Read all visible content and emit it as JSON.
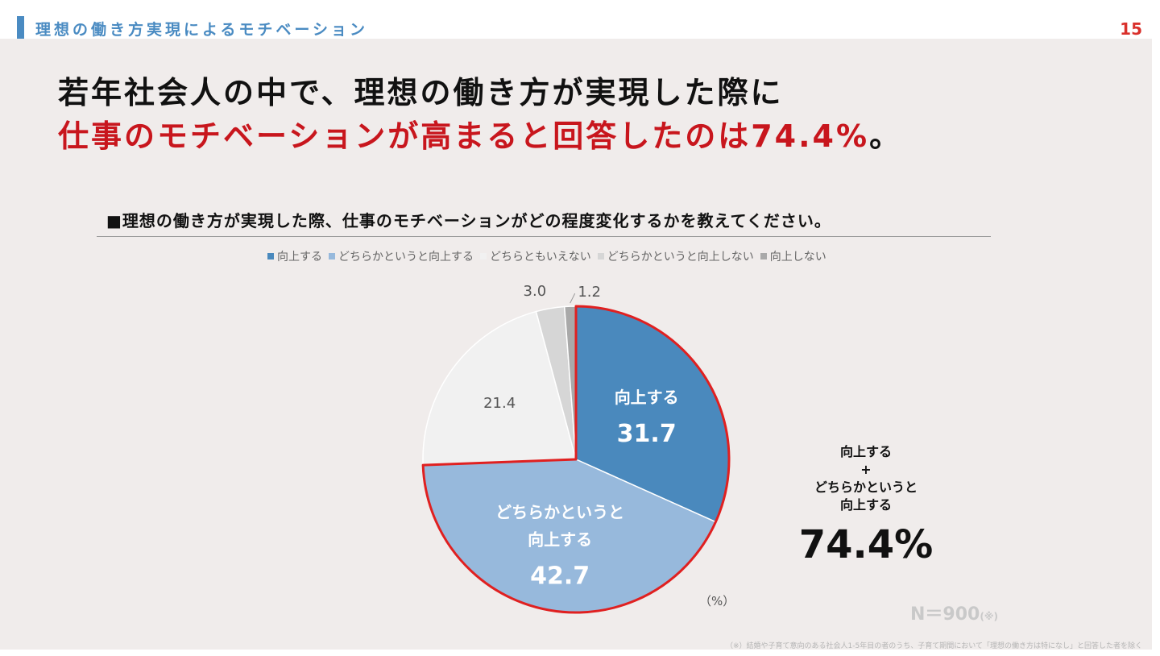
{
  "header": {
    "title": "理想の働き方実現によるモチベーション",
    "page_number": "15"
  },
  "headline": {
    "line1": "若年社会人の中で、理想の働き方が実現した際に",
    "line2_red": "仕事のモチベーションが高まると回答したのは74.4%",
    "line2_end": "。"
  },
  "question": "■理想の働き方が実現した際、仕事のモチベーションがどの程度変化するかを教えてください。",
  "summary": {
    "line1": "向上する",
    "plus": "+",
    "line2": "どちらかというと",
    "line3": "向上する",
    "value": "74.4%"
  },
  "unit": "（%）",
  "sample": {
    "label": "N＝900",
    "mark": "(※)"
  },
  "footnote": "（※）結婚や子育て意向のある社会人1-5年目の者のうち、子育て期間において「理想の働き方は特になし」と回答した者を除く",
  "colors": {
    "highlight_outline": "#e02020"
  },
  "chart_data": {
    "type": "pie",
    "unit": "%",
    "legend_position": "top",
    "start": "12 o'clock",
    "direction": "clockwise",
    "slices": [
      {
        "name": "向上する",
        "value": 31.7,
        "label": "31.7",
        "inside_label": [
          "向上する"
        ],
        "color": "#4a89bd",
        "highlighted": true
      },
      {
        "name": "どちらかというと向上する",
        "value": 42.7,
        "label": "42.7",
        "inside_label": [
          "どちらかというと",
          "向上する"
        ],
        "color": "#97b9dc",
        "highlighted": true
      },
      {
        "name": "どちらともいえない",
        "value": 21.4,
        "label": "21.4",
        "inside_label": [],
        "color": "#f1f1f1",
        "highlighted": false
      },
      {
        "name": "どちらかというと向上しない",
        "value": 3.0,
        "label": "3.0",
        "inside_label": [],
        "color": "#d6d6d6",
        "highlighted": false
      },
      {
        "name": "向上しない",
        "value": 1.2,
        "label": "1.2",
        "inside_label": [],
        "color": "#a9a9a9",
        "highlighted": false
      }
    ]
  }
}
